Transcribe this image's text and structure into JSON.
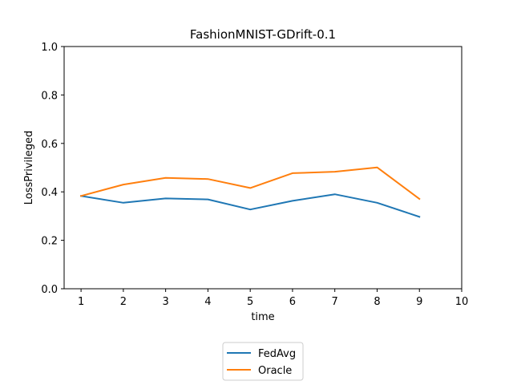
{
  "chart_data": {
    "type": "line",
    "title": "FashionMNIST-GDrift-0.1",
    "xlabel": "time",
    "ylabel": "LossPrivileged",
    "xlim": [
      0.6,
      10
    ],
    "ylim": [
      0,
      1.0
    ],
    "xticks": [
      1,
      2,
      3,
      4,
      5,
      6,
      7,
      8,
      9,
      10
    ],
    "yticks": [
      0.0,
      0.2,
      0.4,
      0.6,
      0.8,
      1.0
    ],
    "ytick_labels": [
      "0.0",
      "0.2",
      "0.4",
      "0.6",
      "0.8",
      "1.0"
    ],
    "grid": false,
    "legend_position": "bottom-center-outside",
    "series": [
      {
        "name": "FedAvg",
        "color": "#1f77b4",
        "x": [
          1,
          2,
          3,
          4,
          5,
          6,
          7,
          8,
          9
        ],
        "values": [
          0.383,
          0.355,
          0.373,
          0.369,
          0.327,
          0.363,
          0.39,
          0.355,
          0.297
        ]
      },
      {
        "name": "Oracle",
        "color": "#ff7f0e",
        "x": [
          1,
          2,
          3,
          4,
          5,
          6,
          7,
          8,
          9
        ],
        "values": [
          0.383,
          0.43,
          0.458,
          0.453,
          0.416,
          0.477,
          0.483,
          0.501,
          0.371
        ]
      }
    ]
  }
}
